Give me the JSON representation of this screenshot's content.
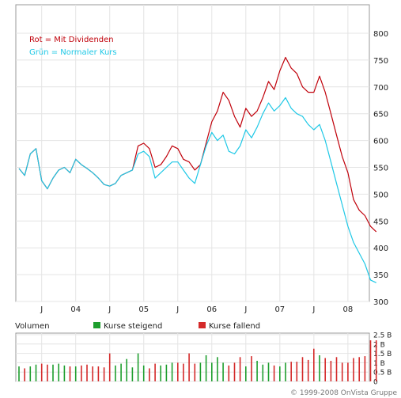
{
  "chart_data": [
    {
      "type": "line",
      "annotations": [
        "Rot = Mit Dividenden",
        "Grün = Normaler Kurs"
      ],
      "ylim": [
        300,
        800
      ],
      "yticks": [
        300,
        350,
        400,
        450,
        500,
        550,
        600,
        650,
        700,
        750,
        800
      ],
      "xticks": [
        "J",
        "04",
        "J",
        "05",
        "J",
        "06",
        "J",
        "07",
        "J",
        "08"
      ],
      "grid": true,
      "series": [
        {
          "color": "#c0000a",
          "x": [
            "2003-03",
            "2003-04",
            "2003-05",
            "2003-06",
            "2003-07",
            "2003-08",
            "2003-09",
            "2003-10",
            "2003-11",
            "2003-12",
            "2004-01",
            "2004-02",
            "2004-03",
            "2004-04",
            "2004-05",
            "2004-06",
            "2004-07",
            "2004-08",
            "2004-09",
            "2004-10",
            "2004-11",
            "2004-12",
            "2005-01",
            "2005-02",
            "2005-03",
            "2005-04",
            "2005-05",
            "2005-06",
            "2005-07",
            "2005-08",
            "2005-09",
            "2005-10",
            "2005-11",
            "2005-12",
            "2006-01",
            "2006-02",
            "2006-03",
            "2006-04",
            "2006-05",
            "2006-06",
            "2006-07",
            "2006-08",
            "2006-09",
            "2006-10",
            "2006-11",
            "2006-12",
            "2007-01",
            "2007-02",
            "2007-03",
            "2007-04",
            "2007-05",
            "2007-06",
            "2007-07",
            "2007-08",
            "2007-09",
            "2007-10",
            "2007-11",
            "2007-12",
            "2008-01",
            "2008-02",
            "2008-03",
            "2008-04",
            "2008-05",
            "2008-06"
          ],
          "values": [
            548,
            535,
            575,
            585,
            525,
            510,
            530,
            545,
            550,
            540,
            565,
            555,
            548,
            540,
            530,
            518,
            515,
            520,
            535,
            540,
            545,
            590,
            595,
            585,
            550,
            555,
            570,
            590,
            585,
            565,
            560,
            545,
            555,
            595,
            635,
            655,
            690,
            675,
            645,
            625,
            660,
            645,
            655,
            680,
            710,
            695,
            730,
            755,
            735,
            725,
            700,
            690,
            690,
            720,
            690,
            650,
            610,
            570,
            540,
            490,
            470,
            460,
            440,
            430
          ]
        },
        {
          "color": "#1ec8e6",
          "x": [
            "2003-03",
            "2003-04",
            "2003-05",
            "2003-06",
            "2003-07",
            "2003-08",
            "2003-09",
            "2003-10",
            "2003-11",
            "2003-12",
            "2004-01",
            "2004-02",
            "2004-03",
            "2004-04",
            "2004-05",
            "2004-06",
            "2004-07",
            "2004-08",
            "2004-09",
            "2004-10",
            "2004-11",
            "2004-12",
            "2005-01",
            "2005-02",
            "2005-03",
            "2005-04",
            "2005-05",
            "2005-06",
            "2005-07",
            "2005-08",
            "2005-09",
            "2005-10",
            "2005-11",
            "2005-12",
            "2006-01",
            "2006-02",
            "2006-03",
            "2006-04",
            "2006-05",
            "2006-06",
            "2006-07",
            "2006-08",
            "2006-09",
            "2006-10",
            "2006-11",
            "2006-12",
            "2007-01",
            "2007-02",
            "2007-03",
            "2007-04",
            "2007-05",
            "2007-06",
            "2007-07",
            "2007-08",
            "2007-09",
            "2007-10",
            "2007-11",
            "2007-12",
            "2008-01",
            "2008-02",
            "2008-03",
            "2008-04",
            "2008-05",
            "2008-06"
          ],
          "values": [
            548,
            535,
            575,
            585,
            525,
            510,
            530,
            545,
            550,
            540,
            565,
            555,
            548,
            540,
            530,
            518,
            515,
            520,
            535,
            540,
            545,
            575,
            580,
            570,
            530,
            540,
            550,
            560,
            560,
            545,
            530,
            520,
            555,
            590,
            615,
            600,
            610,
            580,
            575,
            590,
            620,
            605,
            625,
            650,
            670,
            655,
            665,
            680,
            660,
            650,
            645,
            630,
            620,
            630,
            600,
            560,
            520,
            480,
            440,
            410,
            390,
            370,
            340,
            335
          ]
        }
      ]
    },
    {
      "type": "bar",
      "title": "Volumen",
      "legend": [
        {
          "label": "Kurse steigend",
          "color": "#1e9e2e"
        },
        {
          "label": "Kurse fallend",
          "color": "#d42a2a"
        }
      ],
      "legend_position": "top",
      "ylim": [
        0,
        2.5
      ],
      "yticks": [
        "0",
        "0.5 B",
        "1 B",
        "1.5 B",
        "2 B",
        "2.5 B"
      ],
      "x": [
        "2003-03",
        "2003-04",
        "2003-05",
        "2003-06",
        "2003-07",
        "2003-08",
        "2003-09",
        "2003-10",
        "2003-11",
        "2003-12",
        "2004-01",
        "2004-02",
        "2004-03",
        "2004-04",
        "2004-05",
        "2004-06",
        "2004-07",
        "2004-08",
        "2004-09",
        "2004-10",
        "2004-11",
        "2004-12",
        "2005-01",
        "2005-02",
        "2005-03",
        "2005-04",
        "2005-05",
        "2005-06",
        "2005-07",
        "2005-08",
        "2005-09",
        "2005-10",
        "2005-11",
        "2005-12",
        "2006-01",
        "2006-02",
        "2006-03",
        "2006-04",
        "2006-05",
        "2006-06",
        "2006-07",
        "2006-08",
        "2006-09",
        "2006-10",
        "2006-11",
        "2006-12",
        "2007-01",
        "2007-02",
        "2007-03",
        "2007-04",
        "2007-05",
        "2007-06",
        "2007-07",
        "2007-08",
        "2007-09",
        "2007-10",
        "2007-11",
        "2007-12",
        "2008-01",
        "2008-02",
        "2008-03",
        "2008-04",
        "2008-05",
        "2008-06"
      ],
      "values": [
        0.8,
        0.7,
        0.8,
        0.9,
        0.95,
        0.9,
        0.9,
        0.95,
        0.85,
        0.8,
        0.8,
        0.85,
        0.9,
        0.8,
        0.8,
        0.75,
        1.5,
        0.85,
        0.95,
        1.2,
        0.75,
        1.5,
        0.85,
        0.7,
        0.95,
        0.85,
        0.9,
        1.0,
        1.0,
        0.95,
        1.5,
        0.95,
        1.0,
        1.4,
        1.0,
        1.3,
        1.0,
        0.85,
        1.0,
        1.3,
        0.8,
        1.35,
        1.1,
        0.9,
        1.0,
        0.85,
        0.8,
        1.0,
        1.05,
        1.05,
        1.3,
        1.15,
        1.75,
        1.4,
        1.25,
        1.1,
        1.3,
        1.0,
        1.0,
        1.25,
        1.3,
        1.35,
        2.2,
        2.2
      ],
      "rising": [
        true,
        false,
        true,
        true,
        false,
        false,
        true,
        true,
        true,
        false,
        true,
        false,
        false,
        false,
        false,
        false,
        false,
        true,
        true,
        true,
        true,
        true,
        true,
        false,
        false,
        true,
        true,
        true,
        false,
        false,
        false,
        false,
        true,
        true,
        true,
        true,
        true,
        false,
        false,
        false,
        true,
        false,
        true,
        true,
        true,
        false,
        true,
        true,
        false,
        false,
        false,
        false,
        false,
        true,
        false,
        false,
        false,
        false,
        false,
        false,
        false,
        false,
        false,
        false
      ]
    }
  ],
  "footer": {
    "copyright": "© 1999-2008 OnVista Gruppe"
  }
}
